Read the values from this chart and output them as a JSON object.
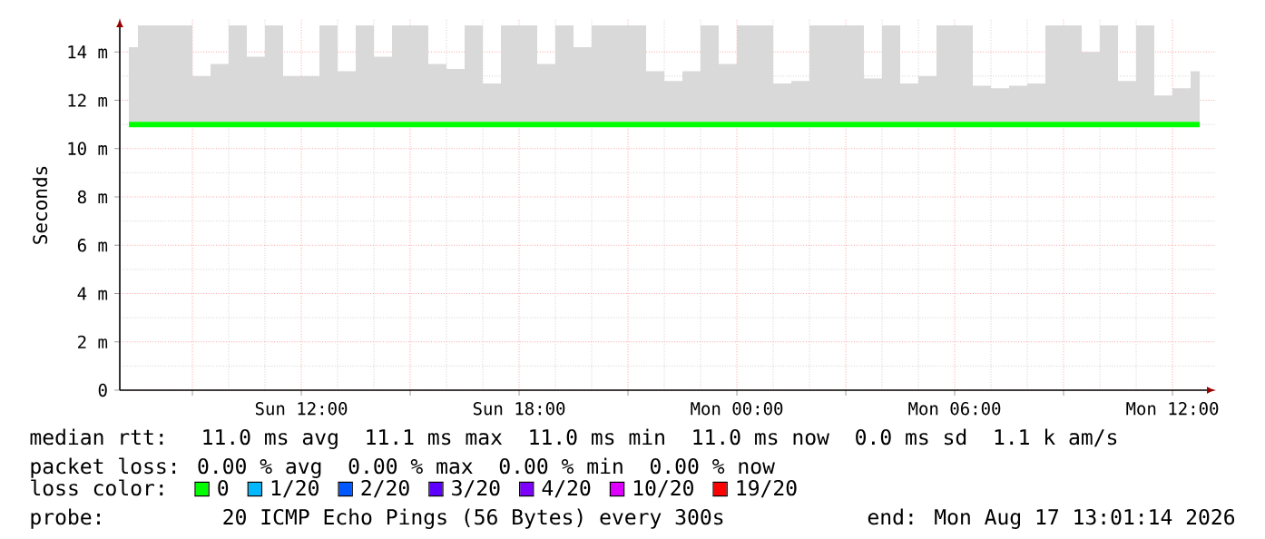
{
  "chart_data": {
    "type": "line",
    "ylabel": "Seconds",
    "legend_title": "loss color:",
    "legend": "bottom",
    "grid": true,
    "marker": "none",
    "line_style": "solid",
    "xlim": [
      "2026-08-16T07:00",
      "2026-08-17T13:12"
    ],
    "ylim": [
      0,
      15.4
    ],
    "xticks": [
      {
        "value": "2026-08-16T09:00",
        "label": null
      },
      {
        "value": "2026-08-16T12:00",
        "label": "Sun 12:00"
      },
      {
        "value": "2026-08-16T15:00",
        "label": null
      },
      {
        "value": "2026-08-16T18:00",
        "label": "Sun 18:00"
      },
      {
        "value": "2026-08-16T21:00",
        "label": null
      },
      {
        "value": "2026-08-17T00:00",
        "label": "Mon 00:00"
      },
      {
        "value": "2026-08-17T03:00",
        "label": null
      },
      {
        "value": "2026-08-17T06:00",
        "label": "Mon 06:00"
      },
      {
        "value": "2026-08-17T09:00",
        "label": null
      },
      {
        "value": "2026-08-17T12:00",
        "label": "Mon 12:00"
      }
    ],
    "yticks": [
      {
        "value": 0,
        "label": "0"
      },
      {
        "value": 2,
        "label": "2 m"
      },
      {
        "value": 4,
        "label": "4 m"
      },
      {
        "value": 6,
        "label": "6 m"
      },
      {
        "value": 8,
        "label": "8 m"
      },
      {
        "value": 10,
        "label": "10 m"
      },
      {
        "value": 12,
        "label": "12 m"
      },
      {
        "value": 14,
        "label": "14 m"
      }
    ],
    "x": [
      "2026-08-16T07:15",
      "2026-08-16T07:45",
      "2026-08-16T08:15",
      "2026-08-16T08:45",
      "2026-08-16T09:15",
      "2026-08-16T09:45",
      "2026-08-16T10:15",
      "2026-08-16T10:45",
      "2026-08-16T11:15",
      "2026-08-16T11:45",
      "2026-08-16T12:15",
      "2026-08-16T12:45",
      "2026-08-16T13:15",
      "2026-08-16T13:45",
      "2026-08-16T14:15",
      "2026-08-16T14:45",
      "2026-08-16T15:15",
      "2026-08-16T15:45",
      "2026-08-16T16:15",
      "2026-08-16T16:45",
      "2026-08-16T17:15",
      "2026-08-16T17:45",
      "2026-08-16T18:15",
      "2026-08-16T18:45",
      "2026-08-16T19:15",
      "2026-08-16T19:45",
      "2026-08-16T20:15",
      "2026-08-16T20:45",
      "2026-08-16T21:15",
      "2026-08-16T21:45",
      "2026-08-16T22:15",
      "2026-08-16T22:45",
      "2026-08-16T23:15",
      "2026-08-16T23:45",
      "2026-08-17T00:15",
      "2026-08-17T00:45",
      "2026-08-17T01:15",
      "2026-08-17T01:45",
      "2026-08-17T02:15",
      "2026-08-17T02:45",
      "2026-08-17T03:15",
      "2026-08-17T03:45",
      "2026-08-17T04:15",
      "2026-08-17T04:45",
      "2026-08-17T05:15",
      "2026-08-17T05:45",
      "2026-08-17T06:15",
      "2026-08-17T06:45",
      "2026-08-17T07:15",
      "2026-08-17T07:45",
      "2026-08-17T08:15",
      "2026-08-17T08:45",
      "2026-08-17T09:15",
      "2026-08-17T09:45",
      "2026-08-17T10:15",
      "2026-08-17T10:45",
      "2026-08-17T11:15",
      "2026-08-17T11:45",
      "2026-08-17T12:15",
      "2026-08-17T12:45"
    ],
    "series": [
      {
        "name": "0",
        "color": "#00ff00",
        "values": [
          11,
          11,
          11,
          11,
          11,
          11,
          11,
          11,
          11,
          11,
          11,
          11,
          11,
          11,
          11,
          11,
          11,
          11,
          11,
          11,
          11,
          11,
          11,
          11,
          11,
          11,
          11,
          11,
          11,
          11,
          11,
          11,
          11,
          11,
          11,
          11,
          11,
          11,
          11,
          11,
          11,
          11,
          11,
          11,
          11,
          11,
          11,
          11,
          11,
          11,
          11,
          11,
          11,
          11,
          11,
          11,
          11,
          11,
          11,
          11
        ],
        "lower": [
          11,
          11,
          11,
          11,
          11,
          11,
          11,
          11,
          11,
          11,
          11,
          11,
          11,
          11,
          11,
          11,
          11,
          11,
          11,
          11,
          11,
          11,
          11,
          11,
          11,
          11,
          11,
          11,
          11,
          11,
          11,
          11,
          11,
          11,
          11,
          11,
          11,
          11,
          11,
          11,
          11,
          11,
          11,
          11,
          11,
          11,
          11,
          11,
          11,
          11,
          11,
          11,
          11,
          11,
          11,
          11,
          11,
          11,
          11,
          11
        ],
        "upper": [
          14.2,
          15.1,
          15.1,
          15.1,
          13,
          13.5,
          15.1,
          13.8,
          15.1,
          13,
          13,
          15.1,
          13.2,
          15.1,
          13.8,
          15.1,
          15.1,
          13.5,
          13.3,
          15.1,
          12.7,
          15.1,
          15.1,
          13.5,
          15.1,
          14.2,
          15.1,
          15.1,
          15.1,
          13.2,
          12.8,
          13.2,
          15.1,
          13.5,
          15.1,
          15.1,
          12.7,
          12.8,
          15.1,
          15.1,
          15.1,
          12.9,
          15.1,
          12.7,
          13,
          15.1,
          15.1,
          12.6,
          12.5,
          12.6,
          12.7,
          15.1,
          15.1,
          14,
          15.1,
          12.8,
          15.1,
          12.2,
          12.5,
          13.2
        ]
      },
      {
        "name": "1/20",
        "color": "#00b8ff",
        "values": [
          null,
          null,
          null,
          null,
          null,
          null,
          null,
          null,
          null,
          null,
          null,
          null,
          null,
          null,
          null,
          null,
          null,
          null,
          null,
          null,
          null,
          null,
          null,
          null,
          null,
          null,
          null,
          null,
          null,
          null,
          null,
          null,
          null,
          null,
          null,
          null,
          null,
          null,
          null,
          null,
          null,
          null,
          null,
          null,
          null,
          null,
          null,
          null,
          null,
          null,
          null,
          null,
          null,
          null,
          null,
          null,
          null,
          null,
          null,
          null
        ]
      },
      {
        "name": "2/20",
        "color": "#0059ff",
        "values": [
          null,
          null,
          null,
          null,
          null,
          null,
          null,
          null,
          null,
          null,
          null,
          null,
          null,
          null,
          null,
          null,
          null,
          null,
          null,
          null,
          null,
          null,
          null,
          null,
          null,
          null,
          null,
          null,
          null,
          null,
          null,
          null,
          null,
          null,
          null,
          null,
          null,
          null,
          null,
          null,
          null,
          null,
          null,
          null,
          null,
          null,
          null,
          null,
          null,
          null,
          null,
          null,
          null,
          null,
          null,
          null,
          null,
          null,
          null,
          null
        ]
      },
      {
        "name": "3/20",
        "color": "#5e00ff",
        "values": [
          null,
          null,
          null,
          null,
          null,
          null,
          null,
          null,
          null,
          null,
          null,
          null,
          null,
          null,
          null,
          null,
          null,
          null,
          null,
          null,
          null,
          null,
          null,
          null,
          null,
          null,
          null,
          null,
          null,
          null,
          null,
          null,
          null,
          null,
          null,
          null,
          null,
          null,
          null,
          null,
          null,
          null,
          null,
          null,
          null,
          null,
          null,
          null,
          null,
          null,
          null,
          null,
          null,
          null,
          null,
          null,
          null,
          null,
          null,
          null
        ]
      },
      {
        "name": "4/20",
        "color": "#7e00ff",
        "values": [
          null,
          null,
          null,
          null,
          null,
          null,
          null,
          null,
          null,
          null,
          null,
          null,
          null,
          null,
          null,
          null,
          null,
          null,
          null,
          null,
          null,
          null,
          null,
          null,
          null,
          null,
          null,
          null,
          null,
          null,
          null,
          null,
          null,
          null,
          null,
          null,
          null,
          null,
          null,
          null,
          null,
          null,
          null,
          null,
          null,
          null,
          null,
          null,
          null,
          null,
          null,
          null,
          null,
          null,
          null,
          null,
          null,
          null,
          null,
          null
        ]
      },
      {
        "name": "10/20",
        "color": "#dd00ff",
        "values": [
          null,
          null,
          null,
          null,
          null,
          null,
          null,
          null,
          null,
          null,
          null,
          null,
          null,
          null,
          null,
          null,
          null,
          null,
          null,
          null,
          null,
          null,
          null,
          null,
          null,
          null,
          null,
          null,
          null,
          null,
          null,
          null,
          null,
          null,
          null,
          null,
          null,
          null,
          null,
          null,
          null,
          null,
          null,
          null,
          null,
          null,
          null,
          null,
          null,
          null,
          null,
          null,
          null,
          null,
          null,
          null,
          null,
          null,
          null,
          null
        ]
      },
      {
        "name": "19/20",
        "color": "#ff0000",
        "values": [
          null,
          null,
          null,
          null,
          null,
          null,
          null,
          null,
          null,
          null,
          null,
          null,
          null,
          null,
          null,
          null,
          null,
          null,
          null,
          null,
          null,
          null,
          null,
          null,
          null,
          null,
          null,
          null,
          null,
          null,
          null,
          null,
          null,
          null,
          null,
          null,
          null,
          null,
          null,
          null,
          null,
          null,
          null,
          null,
          null,
          null,
          null,
          null,
          null,
          null,
          null,
          null,
          null,
          null,
          null,
          null,
          null,
          null,
          null,
          null
        ]
      }
    ],
    "annotations": [
      "median rtt:  11.0 ms avg  11.1 ms max  11.0 ms min  11.0 ms now  0.0 ms sd  1.1 k am/s",
      "packet loss: 0.00 % avg  0.00 % max  0.00 % min  0.00 % now",
      "probe:       20 ICMP Echo Pings (56 Bytes) every 300s",
      "end: Mon Aug 17 13:01:14 2026"
    ]
  }
}
